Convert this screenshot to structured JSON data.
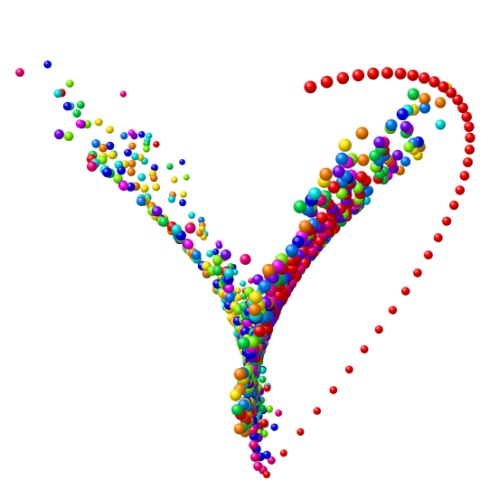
{
  "scene": {
    "subject": "lorenz-attractor",
    "style": "beaded-trajectory-spheres",
    "background": "#ffffff",
    "palette": [
      "#ff0000",
      "#ff8000",
      "#ffe600",
      "#7fff00",
      "#00dd44",
      "#00e5e5",
      "#0080ff",
      "#0000ff",
      "#7a00ff",
      "#ff00ff",
      "#ff0080"
    ],
    "lead_color": "#ff0000",
    "params": {
      "sigma": 10,
      "rho": 28,
      "beta": 2.6667
    }
  }
}
